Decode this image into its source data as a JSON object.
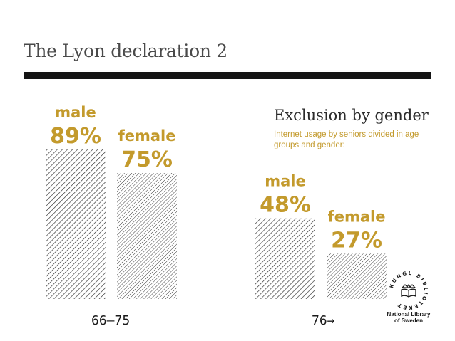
{
  "slide": {
    "title": "The Lyon declaration 2",
    "heading": "Exclusion by gender",
    "subheading": "Internet usage by seniors divided in age groups and gender:"
  },
  "colors": {
    "accent": "#c39a2c",
    "rule": "#141414",
    "hatch": "#2a2a2a"
  },
  "chart_data": {
    "type": "bar",
    "title": "Exclusion by gender",
    "categories": [
      "66–75",
      "76"
    ],
    "category_display": [
      "66–75",
      "76→"
    ],
    "series": [
      {
        "name": "male",
        "values": [
          89,
          48
        ]
      },
      {
        "name": "female",
        "values": [
          75,
          27
        ]
      }
    ],
    "value_labels": [
      [
        "89%",
        "75%"
      ],
      [
        "48%",
        "27%"
      ]
    ],
    "unit": "%",
    "ylim": [
      0,
      100
    ],
    "grid": false,
    "legend": "none (labels above bars)"
  },
  "logo": {
    "arc_text": "KUNGL BIBLIOTEKET",
    "name_line1": "National Library",
    "name_line2": "of Sweden",
    "icon": "book-crown-icon"
  }
}
